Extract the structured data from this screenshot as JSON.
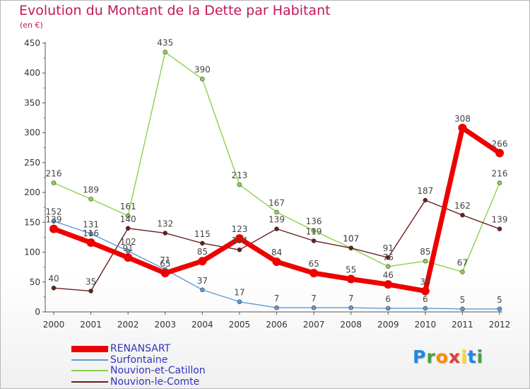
{
  "title": "Evolution du Montant de la Dette par Habitant",
  "unit": "(en €)",
  "logo": {
    "letters": [
      "P",
      "r",
      "o",
      "x",
      "i",
      "t",
      "i"
    ],
    "colors": [
      "#1e88e5",
      "#43a047",
      "#fb8c00",
      "#e53935",
      "#fdd835",
      "#1e88e5",
      "#43a047"
    ]
  },
  "chart_data": {
    "type": "line",
    "categories": [
      "2000",
      "2001",
      "2002",
      "2003",
      "2004",
      "2005",
      "2006",
      "2007",
      "2008",
      "2009",
      "2010",
      "2011",
      "2012"
    ],
    "ylim": [
      0,
      450
    ],
    "yticks": [
      0,
      50,
      100,
      150,
      200,
      250,
      300,
      350,
      400,
      450
    ],
    "grid": false,
    "legend_position": "bottom-left",
    "series": [
      {
        "name": "RENANSART",
        "color": "#ee0000",
        "width": "thick",
        "values": [
          139,
          116,
          91,
          65,
          85,
          123,
          84,
          65,
          55,
          46,
          35,
          308,
          266
        ],
        "labels": [
          "139",
          "116",
          "91",
          "65",
          "85",
          "123",
          "84",
          "65",
          "55",
          "46",
          "35",
          "308",
          "266"
        ]
      },
      {
        "name": "Surfontaine",
        "color": "#5b9bd5",
        "width": "thin",
        "values": [
          152,
          131,
          102,
          71,
          37,
          17,
          7,
          7,
          7,
          6,
          6,
          5,
          5
        ],
        "labels": [
          "152",
          "131",
          "102",
          "71",
          "37",
          "17",
          "7",
          "7",
          "7",
          "6",
          "6",
          "5",
          "5"
        ]
      },
      {
        "name": "Nouvion-et-Catillon",
        "color": "#8cd14b",
        "width": "thin",
        "values": [
          216,
          189,
          161,
          435,
          390,
          213,
          167,
          136,
          107,
          76,
          85,
          67,
          216
        ],
        "labels": [
          "216",
          "189",
          "161",
          "435",
          "390",
          "213",
          "167",
          "136",
          "107",
          "76",
          "85",
          "67",
          "216"
        ]
      },
      {
        "name": "Nouvion-le-Comte",
        "color": "#6b1c1c",
        "width": "thin",
        "values": [
          40,
          35,
          140,
          132,
          115,
          104,
          139,
          119,
          107,
          91,
          187,
          162,
          139
        ],
        "labels": [
          "40",
          "35",
          "140",
          "132",
          "115",
          "104",
          "139",
          "119",
          "107",
          "91",
          "187",
          "162",
          "139"
        ]
      }
    ]
  }
}
